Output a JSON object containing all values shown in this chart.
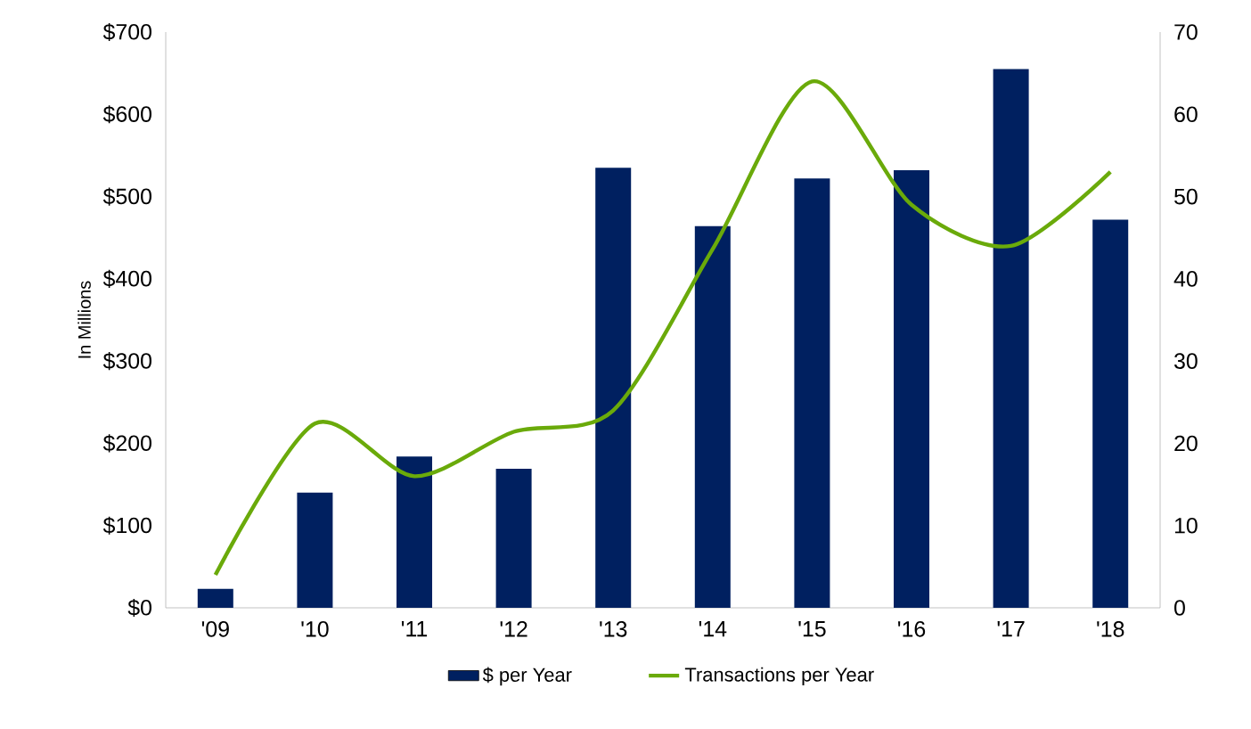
{
  "chart_data": {
    "type": "bar",
    "categories": [
      "'09",
      "'10",
      "'11",
      "'12",
      "'13",
      "'14",
      "'15",
      "'16",
      "'17",
      "'18"
    ],
    "ylabel": "In Millions",
    "ylim": [
      0,
      700
    ],
    "yticks": [
      {
        "value": 0,
        "label": "$0"
      },
      {
        "value": 100,
        "label": "$100"
      },
      {
        "value": 200,
        "label": "$200"
      },
      {
        "value": 300,
        "label": "$300"
      },
      {
        "value": 400,
        "label": "$400"
      },
      {
        "value": 500,
        "label": "$500"
      },
      {
        "value": 600,
        "label": "$600"
      },
      {
        "value": 700,
        "label": "$700"
      }
    ],
    "y2lim": [
      0,
      70
    ],
    "y2ticks": [
      0,
      10,
      20,
      30,
      40,
      50,
      60,
      70
    ],
    "series": [
      {
        "name": "$ per Year",
        "color": "#002060",
        "values": [
          23,
          140,
          184,
          169,
          535,
          464,
          522,
          532,
          655,
          472
        ]
      },
      {
        "name": "Transactions per Year",
        "type": "line",
        "axis": "y2",
        "color": "#6aaa0a",
        "values": [
          4,
          22.4,
          16,
          21.4,
          24,
          43.6,
          64,
          49,
          44,
          53
        ]
      }
    ],
    "legend": "bottom"
  }
}
